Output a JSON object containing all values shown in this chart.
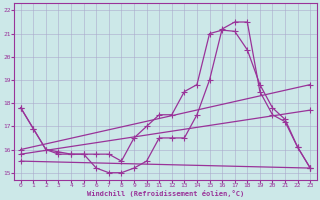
{
  "background_color": "#cce8e8",
  "grid_color": "#aaaacc",
  "line_color": "#993399",
  "xlim": [
    -0.5,
    23.5
  ],
  "ylim": [
    14.7,
    22.3
  ],
  "xticks": [
    0,
    1,
    2,
    3,
    4,
    5,
    6,
    7,
    8,
    9,
    10,
    11,
    12,
    13,
    14,
    15,
    16,
    17,
    18,
    19,
    20,
    21,
    22,
    23
  ],
  "yticks": [
    15,
    16,
    17,
    18,
    19,
    20,
    21,
    22
  ],
  "xlabel": "Windchill (Refroidissement éolien,°C)",
  "curve1_x": [
    0,
    1,
    2,
    3,
    4,
    5,
    6,
    7,
    8,
    9,
    10,
    11,
    12,
    13,
    14,
    15,
    16,
    17,
    18,
    19,
    20,
    21,
    22,
    23
  ],
  "curve1_y": [
    17.8,
    16.9,
    16.0,
    15.8,
    15.8,
    15.8,
    15.2,
    15.0,
    15.0,
    15.2,
    15.5,
    16.5,
    16.5,
    16.5,
    17.5,
    19.0,
    21.2,
    21.5,
    21.5,
    18.5,
    17.5,
    17.2,
    16.1,
    15.2
  ],
  "curve2_x": [
    0,
    1,
    2,
    3,
    4,
    5,
    6,
    7,
    8,
    9,
    10,
    11,
    12,
    13,
    14,
    15,
    16,
    17,
    18,
    19,
    20,
    21,
    22,
    23
  ],
  "curve2_y": [
    17.8,
    16.9,
    16.0,
    15.9,
    15.8,
    15.8,
    15.8,
    15.8,
    15.5,
    16.5,
    17.0,
    17.5,
    17.5,
    18.5,
    18.8,
    21.0,
    21.15,
    21.1,
    20.3,
    18.8,
    17.8,
    17.3,
    16.1,
    15.2
  ],
  "line1_x": [
    0,
    23
  ],
  "line1_y": [
    16.0,
    18.8
  ],
  "line2_x": [
    0,
    23
  ],
  "line2_y": [
    15.8,
    17.7
  ],
  "line3_x": [
    0,
    23
  ],
  "line3_y": [
    15.5,
    15.2
  ]
}
